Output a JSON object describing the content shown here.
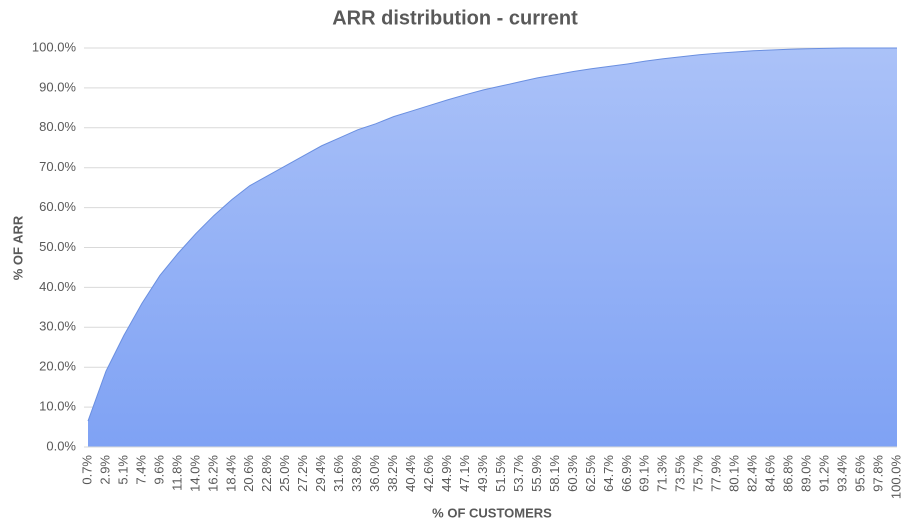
{
  "chart_data": {
    "type": "area",
    "title": "ARR distribution - current",
    "x_label": "% OF CUSTOMERS",
    "y_label": "% OF ARR",
    "categories": [
      "0.7%",
      "2.9%",
      "5.1%",
      "7.4%",
      "9.6%",
      "11.8%",
      "14.0%",
      "16.2%",
      "18.4%",
      "20.6%",
      "22.8%",
      "25.0%",
      "27.2%",
      "29.4%",
      "31.6%",
      "33.8%",
      "36.0%",
      "38.2%",
      "40.4%",
      "42.6%",
      "44.9%",
      "47.1%",
      "49.3%",
      "51.5%",
      "53.7%",
      "55.9%",
      "58.1%",
      "60.3%",
      "62.5%",
      "64.7%",
      "66.9%",
      "69.1%",
      "71.3%",
      "73.5%",
      "75.7%",
      "77.9%",
      "80.1%",
      "82.4%",
      "84.6%",
      "86.8%",
      "89.0%",
      "91.2%",
      "93.4%",
      "95.6%",
      "97.8%",
      "100.0%"
    ],
    "values": [
      6.5,
      19,
      28,
      36,
      43,
      48.5,
      53.5,
      58,
      62,
      65.5,
      68,
      70.5,
      73,
      75.5,
      77.5,
      79.5,
      81,
      82.8,
      84.2,
      85.6,
      87,
      88.3,
      89.5,
      90.5,
      91.5,
      92.5,
      93.3,
      94.1,
      94.8,
      95.4,
      96,
      96.7,
      97.3,
      97.8,
      98.3,
      98.7,
      99,
      99.3,
      99.5,
      99.7,
      99.8,
      99.9,
      100,
      100,
      100,
      100
    ],
    "color": "#8eacf5",
    "line_color": "#6a8fe0",
    "ylim": [
      0,
      100
    ],
    "yticks": [
      {
        "value": 0,
        "label": "0.0%"
      },
      {
        "value": 10,
        "label": "10.0%"
      },
      {
        "value": 20,
        "label": "20.0%"
      },
      {
        "value": 30,
        "label": "30.0%"
      },
      {
        "value": 40,
        "label": "40.0%"
      },
      {
        "value": 50,
        "label": "50.0%"
      },
      {
        "value": 60,
        "label": "60.0%"
      },
      {
        "value": 70,
        "label": "70.0%"
      },
      {
        "value": 80,
        "label": "80.0%"
      },
      {
        "value": 90,
        "label": "90.0%"
      },
      {
        "value": 100,
        "label": "100.0%"
      }
    ],
    "grid": true
  }
}
